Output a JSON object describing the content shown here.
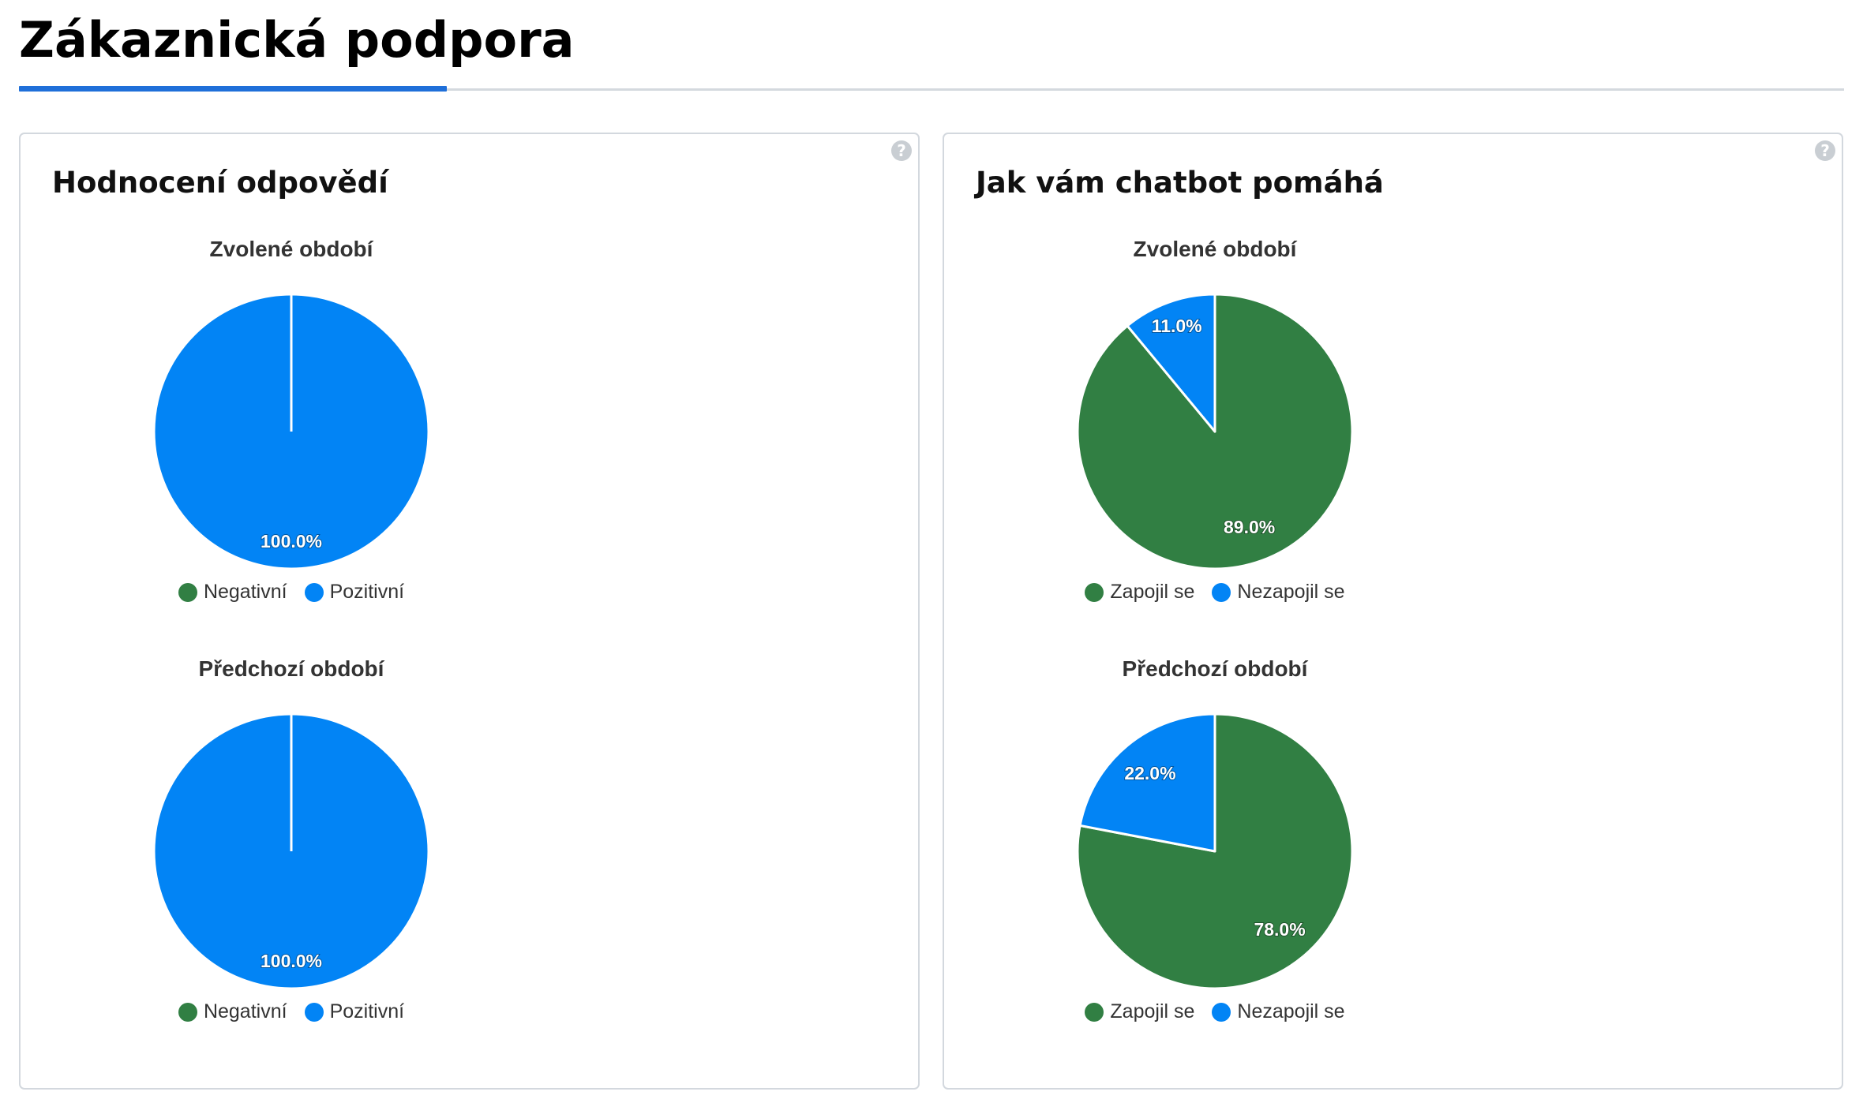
{
  "page": {
    "title": "Zákaznická podpora"
  },
  "colors": {
    "green": "#317f43",
    "blue": "#0284f5",
    "accent": "#1f6fd9"
  },
  "cards": [
    {
      "title": "Hodnocení odpovědí",
      "help_icon": "question-icon"
    },
    {
      "title": "Jak vám chatbot pomáhá",
      "help_icon": "question-icon"
    }
  ],
  "chart_data": [
    {
      "type": "pie",
      "title": "Zvolené období",
      "categories": [
        "Negativní",
        "Pozitivní"
      ],
      "values": [
        0.0,
        100.0
      ],
      "labels": [
        "",
        "100.0%"
      ],
      "colors": [
        "#317f43",
        "#0284f5"
      ],
      "legend": "bottom"
    },
    {
      "type": "pie",
      "title": "Předchozí období",
      "categories": [
        "Negativní",
        "Pozitivní"
      ],
      "values": [
        0.0,
        100.0
      ],
      "labels": [
        "",
        "100.0%"
      ],
      "colors": [
        "#317f43",
        "#0284f5"
      ],
      "legend": "bottom"
    },
    {
      "type": "pie",
      "title": "Zvolené období",
      "categories": [
        "Zapojil se",
        "Nezapojil se"
      ],
      "values": [
        89.0,
        11.0
      ],
      "labels": [
        "89.0%",
        "11.0%"
      ],
      "colors": [
        "#317f43",
        "#0284f5"
      ],
      "legend": "bottom"
    },
    {
      "type": "pie",
      "title": "Předchozí období",
      "categories": [
        "Zapojil se",
        "Nezapojil se"
      ],
      "values": [
        78.0,
        22.0
      ],
      "labels": [
        "78.0%",
        "22.0%"
      ],
      "colors": [
        "#317f43",
        "#0284f5"
      ],
      "legend": "bottom"
    }
  ]
}
